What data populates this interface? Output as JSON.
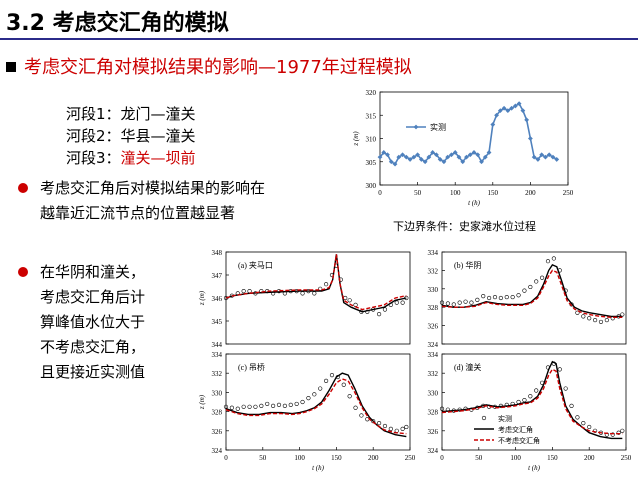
{
  "title": "3.2 考虑交汇角的模拟",
  "subtitle": "考虑交汇角对模拟结果的影响—1977年过程模拟",
  "segments": [
    {
      "label": "河段1：",
      "reach": "龙门—潼关"
    },
    {
      "label": "河段2：",
      "reach": "华县—潼关"
    },
    {
      "label": "河段3：",
      "reach": "潼关—坝前"
    }
  ],
  "bullet1": [
    "考虑交汇角后对模拟结果的影响在",
    "越靠近汇流节点的位置越显著"
  ],
  "bullet2": [
    "在华阴和潼关，",
    "考虑交汇角后计",
    "算峰值水位大于",
    "不考虑交汇角，",
    "且更接近实测值"
  ],
  "bc_caption": "下边界条件：史家滩水位过程",
  "colors": {
    "accent": "#cc0000",
    "series_blue": "#4f81bd",
    "title_rule": "#2b2b8a"
  },
  "chart_data": [
    {
      "type": "line",
      "ylabel": "z (m)",
      "xlabel": "t (h)",
      "xlim": [
        0,
        250
      ],
      "ylim": [
        300,
        320
      ],
      "xticks": [
        0,
        50,
        100,
        150,
        200,
        250
      ],
      "yticks": [
        300,
        305,
        310,
        315,
        320
      ],
      "legend_position": "top-left",
      "series": [
        {
          "name": "实测",
          "marker": "diamond",
          "x": [
            0,
            5,
            10,
            15,
            20,
            25,
            30,
            35,
            40,
            45,
            50,
            55,
            60,
            65,
            70,
            75,
            80,
            85,
            90,
            95,
            100,
            105,
            110,
            115,
            120,
            125,
            130,
            135,
            140,
            145,
            150,
            155,
            160,
            165,
            170,
            175,
            180,
            185,
            190,
            195,
            200,
            205,
            210,
            215,
            220,
            225,
            230,
            235
          ],
          "y": [
            306,
            307,
            306.5,
            305,
            304.5,
            306,
            306.5,
            306,
            305.5,
            306,
            306.5,
            305.5,
            305,
            306,
            307,
            306.5,
            305.5,
            305,
            306,
            306.5,
            307,
            306,
            305,
            306,
            306.5,
            307,
            306.5,
            305,
            306,
            307,
            313,
            315,
            316,
            316.5,
            316,
            316.5,
            317,
            317.5,
            316,
            314,
            310,
            306,
            305.5,
            306.5,
            306,
            306.5,
            306,
            305.5
          ]
        }
      ]
    },
    {
      "type": "line",
      "panel": "(a) 夹马口",
      "ylabel": "z (m)",
      "xlim": [
        0,
        250
      ],
      "ylim": [
        344,
        348
      ],
      "yticks": [
        344,
        345,
        346,
        347,
        348
      ],
      "series": [
        {
          "name": "实测",
          "marker": "circle",
          "x": [
            0,
            8,
            16,
            24,
            32,
            40,
            48,
            56,
            64,
            72,
            80,
            88,
            96,
            104,
            112,
            120,
            128,
            136,
            144,
            150,
            156,
            162,
            168,
            176,
            184,
            192,
            200,
            208,
            216,
            224,
            232,
            240,
            245
          ],
          "y": [
            346,
            346.1,
            346.2,
            346.3,
            346.3,
            346.2,
            346.3,
            346.3,
            346.2,
            346.3,
            346.2,
            346.3,
            346.3,
            346.2,
            346.3,
            346.2,
            346.4,
            346.6,
            347,
            347.4,
            346.8,
            346,
            345.9,
            345.7,
            345.4,
            345.4,
            345.5,
            345.3,
            345.5,
            345.7,
            345.8,
            345.8,
            346
          ]
        },
        {
          "name": "考虑交汇角",
          "x": [
            0,
            10,
            30,
            60,
            100,
            130,
            140,
            145,
            150,
            155,
            160,
            170,
            185,
            200,
            215,
            230,
            245
          ],
          "y": [
            346.0,
            346.1,
            346.2,
            346.25,
            346.3,
            346.3,
            346.4,
            346.8,
            347.9,
            346.6,
            345.8,
            345.6,
            345.4,
            345.5,
            345.6,
            345.9,
            346.0
          ]
        },
        {
          "name": "不考虑交汇角",
          "x": [
            0,
            10,
            30,
            60,
            100,
            130,
            140,
            145,
            150,
            155,
            160,
            170,
            185,
            200,
            215,
            230,
            245
          ],
          "y": [
            346.0,
            346.1,
            346.2,
            346.3,
            346.35,
            346.35,
            346.45,
            346.8,
            347.9,
            346.6,
            345.9,
            345.7,
            345.5,
            345.6,
            345.7,
            346.0,
            346.1
          ]
        }
      ]
    },
    {
      "type": "line",
      "panel": "(b) 华阴",
      "ylabel": "z (m)",
      "xlim": [
        0,
        250
      ],
      "ylim": [
        324,
        334
      ],
      "yticks": [
        324,
        326,
        328,
        330,
        332,
        334
      ],
      "series": [
        {
          "name": "实测",
          "marker": "circle",
          "x": [
            0,
            8,
            16,
            24,
            32,
            40,
            48,
            56,
            64,
            72,
            80,
            88,
            96,
            104,
            112,
            120,
            128,
            136,
            144,
            152,
            160,
            168,
            176,
            184,
            192,
            200,
            208,
            216,
            224,
            232,
            240,
            245
          ],
          "y": [
            328.5,
            328.4,
            328.3,
            328.5,
            328.6,
            328.5,
            328.8,
            329.2,
            329.0,
            329.1,
            329.0,
            329.1,
            329.1,
            329.3,
            329.8,
            330.2,
            330.8,
            331.2,
            333.0,
            333.3,
            332.0,
            329.8,
            328.3,
            327.4,
            327.0,
            326.8,
            326.6,
            326.4,
            326.6,
            326.8,
            327.0,
            327.2
          ]
        },
        {
          "name": "考虑交汇角",
          "x": [
            0,
            15,
            30,
            45,
            60,
            75,
            90,
            100,
            110,
            120,
            130,
            138,
            145,
            150,
            156,
            162,
            170,
            180,
            190,
            200,
            215,
            230,
            245
          ],
          "y": [
            328.2,
            328.0,
            328.0,
            328.2,
            328.6,
            328.4,
            328.3,
            328.3,
            328.3,
            328.5,
            329.2,
            330.5,
            332.0,
            332.6,
            332.4,
            331.0,
            329.0,
            328.0,
            327.6,
            327.4,
            327.2,
            327.0,
            327.0
          ]
        },
        {
          "name": "不考虑交汇角",
          "x": [
            0,
            15,
            30,
            45,
            60,
            75,
            90,
            100,
            110,
            120,
            130,
            138,
            145,
            150,
            156,
            162,
            170,
            180,
            190,
            200,
            215,
            230,
            245
          ],
          "y": [
            328.1,
            328.0,
            328.0,
            328.1,
            328.5,
            328.3,
            328.2,
            328.2,
            328.2,
            328.4,
            329.0,
            330.2,
            331.4,
            332.0,
            331.8,
            330.5,
            328.7,
            327.8,
            327.4,
            327.2,
            327.0,
            326.9,
            326.9
          ]
        }
      ]
    },
    {
      "type": "line",
      "panel": "(c) 吊桥",
      "ylabel": "z (m)",
      "xlabel": "t (h)",
      "xlim": [
        0,
        250
      ],
      "ylim": [
        324,
        334
      ],
      "xticks": [
        0,
        50,
        100,
        150,
        200,
        250
      ],
      "yticks": [
        324,
        326,
        328,
        330,
        332,
        334
      ],
      "series": [
        {
          "name": "实测",
          "marker": "circle",
          "x": [
            0,
            8,
            16,
            24,
            32,
            40,
            48,
            56,
            64,
            72,
            80,
            88,
            96,
            104,
            112,
            120,
            128,
            136,
            144,
            152,
            160,
            168,
            176,
            184,
            192,
            200,
            208,
            216,
            224,
            232,
            240,
            245
          ],
          "y": [
            328.5,
            328.4,
            328.3,
            328.5,
            328.5,
            328.5,
            328.6,
            328.8,
            328.6,
            328.7,
            328.6,
            328.7,
            328.8,
            329.0,
            329.4,
            329.8,
            330.4,
            331.2,
            331.8,
            331.6,
            330.8,
            329.6,
            328.4,
            327.6,
            327.2,
            327.0,
            326.8,
            326.5,
            326.2,
            326.0,
            326.2,
            326.4
          ]
        },
        {
          "name": "考虑交汇角",
          "x": [
            0,
            15,
            30,
            45,
            60,
            75,
            90,
            100,
            110,
            120,
            130,
            140,
            150,
            158,
            166,
            175,
            185,
            195,
            205,
            215,
            230,
            245
          ],
          "y": [
            328.3,
            327.9,
            327.7,
            327.7,
            327.9,
            327.9,
            327.8,
            327.9,
            328.1,
            328.4,
            329.0,
            330.2,
            331.6,
            332.0,
            331.8,
            330.4,
            328.6,
            327.4,
            326.6,
            326.0,
            325.6,
            325.4
          ]
        },
        {
          "name": "不考虑交汇角",
          "x": [
            0,
            15,
            30,
            45,
            60,
            75,
            90,
            100,
            110,
            120,
            130,
            140,
            150,
            158,
            166,
            175,
            185,
            195,
            205,
            215,
            230,
            245
          ],
          "y": [
            328.2,
            327.8,
            327.6,
            327.6,
            327.8,
            327.8,
            327.7,
            327.8,
            328.0,
            328.3,
            328.8,
            329.8,
            331.0,
            331.4,
            331.2,
            330.0,
            328.4,
            327.2,
            326.6,
            326.1,
            325.8,
            325.7
          ]
        }
      ]
    },
    {
      "type": "line",
      "panel": "(d) 潼关",
      "xlabel": "t (h)",
      "xlim": [
        0,
        250
      ],
      "ylim": [
        324,
        334
      ],
      "xticks": [
        0,
        50,
        100,
        150,
        200,
        250
      ],
      "yticks": [
        324,
        326,
        328,
        330,
        332,
        334
      ],
      "legend_position": "bottom-right",
      "series": [
        {
          "name": "实测",
          "marker": "circle",
          "x": [
            0,
            8,
            16,
            24,
            32,
            40,
            48,
            56,
            64,
            72,
            80,
            88,
            96,
            104,
            112,
            120,
            128,
            136,
            144,
            152,
            160,
            168,
            176,
            184,
            192,
            200,
            208,
            216,
            224,
            232,
            240,
            245
          ],
          "y": [
            328.3,
            328.2,
            328.1,
            328.2,
            328.3,
            328.2,
            328.4,
            328.6,
            328.5,
            328.5,
            328.6,
            328.7,
            328.8,
            329.0,
            329.2,
            329.6,
            330.2,
            331.0,
            332.6,
            333.0,
            332.4,
            330.4,
            328.6,
            327.4,
            326.8,
            326.4,
            326.0,
            325.8,
            325.6,
            325.6,
            325.8,
            326.0
          ]
        },
        {
          "name": "考虑交汇角",
          "x": [
            0,
            15,
            30,
            45,
            60,
            75,
            90,
            100,
            110,
            120,
            130,
            138,
            145,
            150,
            155,
            160,
            168,
            178,
            190,
            200,
            215,
            230,
            245
          ],
          "y": [
            328.0,
            328.1,
            328.2,
            328.4,
            328.7,
            328.5,
            328.6,
            328.7,
            328.9,
            329.0,
            329.6,
            330.8,
            332.4,
            333.2,
            333.0,
            331.0,
            328.6,
            327.2,
            326.4,
            325.8,
            325.4,
            325.2,
            325.2
          ]
        },
        {
          "name": "不考虑交汇角",
          "x": [
            0,
            15,
            30,
            45,
            60,
            75,
            90,
            100,
            110,
            120,
            130,
            138,
            145,
            150,
            155,
            160,
            168,
            178,
            190,
            200,
            215,
            230,
            245
          ],
          "y": [
            327.9,
            328.0,
            328.1,
            328.3,
            328.6,
            328.4,
            328.5,
            328.6,
            328.8,
            328.9,
            329.4,
            330.4,
            331.8,
            332.4,
            332.2,
            330.4,
            328.3,
            327.0,
            326.4,
            326.0,
            325.8,
            325.7,
            325.7
          ]
        }
      ]
    }
  ]
}
